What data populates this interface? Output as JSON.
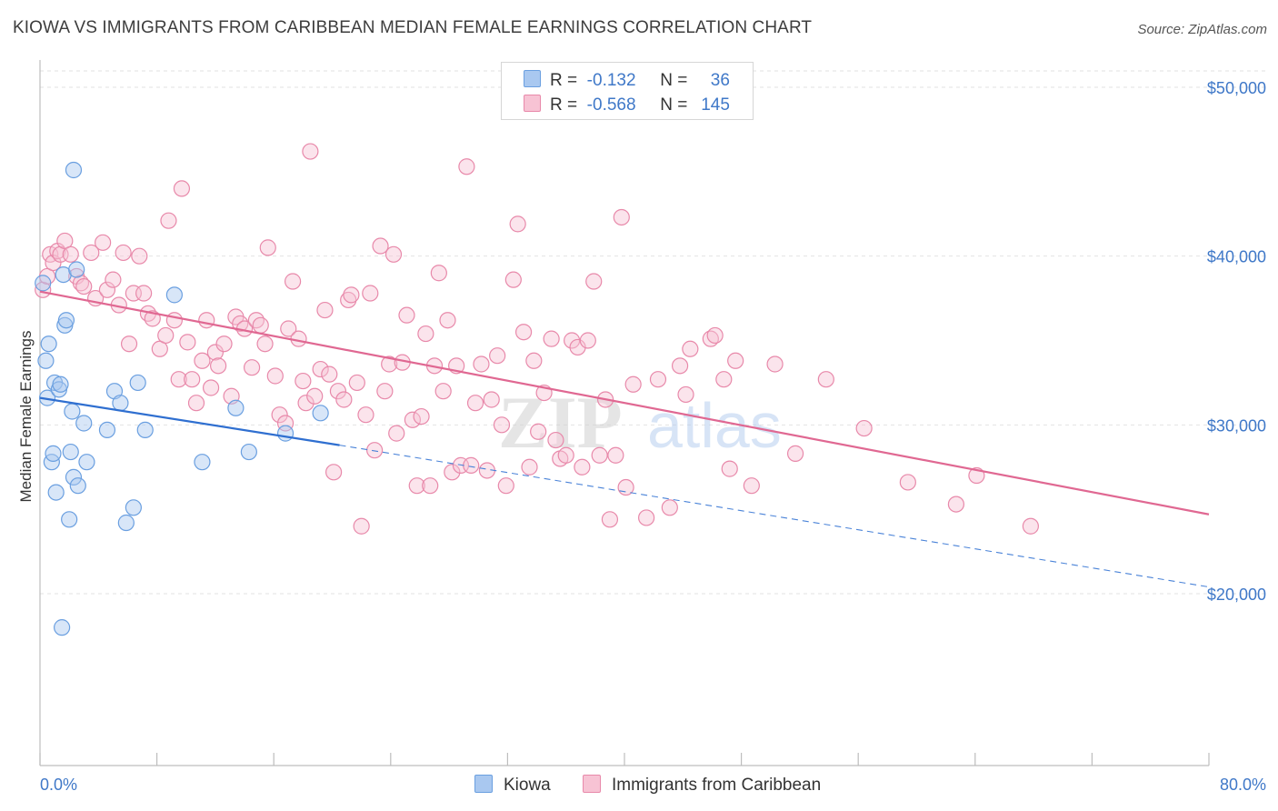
{
  "title": "KIOWA VS IMMIGRANTS FROM CARIBBEAN MEDIAN FEMALE EARNINGS CORRELATION CHART",
  "source": "Source: ZipAtlas.com",
  "watermark": {
    "zip": "ZIP",
    "atlas": "atlas"
  },
  "legend": {
    "r_label": "R =",
    "n_label": "N =",
    "rows": [
      {
        "r": "-0.132",
        "n": "36",
        "color": "#a9c8f0",
        "border": "#6a9fe0"
      },
      {
        "r": "-0.568",
        "n": "145",
        "color": "#f7c3d4",
        "border": "#e889aa"
      }
    ]
  },
  "bottom_legend": [
    "Kiowa",
    "Immigrants from Caribbean"
  ],
  "chart_data": {
    "type": "scatter",
    "title": "KIOWA VS IMMIGRANTS FROM CARIBBEAN MEDIAN FEMALE EARNINGS CORRELATION CHART",
    "xlabel": "",
    "ylabel": "Median Female Earnings",
    "x_unit": "%",
    "xlim": [
      0,
      80
    ],
    "ylim": [
      10000,
      52000
    ],
    "x_tick_labels": [
      "0.0%",
      "80.0%"
    ],
    "y_ticks": [
      20000,
      30000,
      40000,
      50000
    ],
    "y_tick_labels": [
      "$20,000",
      "$30,000",
      "$40,000",
      "$50,000"
    ],
    "grid": true,
    "legend_position": "top-center",
    "series": [
      {
        "name": "Kiowa",
        "color": "#6a9fe0",
        "fill": "#a9c8f0",
        "r": -0.132,
        "n": 36,
        "trend": {
          "x0": 0,
          "y0": 31600,
          "x1": 20.5,
          "y1": 28800,
          "dashed_to_x": 80,
          "dashed_to_y": 20400
        },
        "points": [
          [
            0.2,
            38400
          ],
          [
            0.4,
            33800
          ],
          [
            0.5,
            31600
          ],
          [
            0.6,
            34800
          ],
          [
            0.8,
            27800
          ],
          [
            0.9,
            28300
          ],
          [
            1.0,
            32500
          ],
          [
            1.1,
            26000
          ],
          [
            1.3,
            32100
          ],
          [
            1.4,
            32400
          ],
          [
            1.5,
            18000
          ],
          [
            1.6,
            38900
          ],
          [
            1.7,
            35900
          ],
          [
            1.8,
            36200
          ],
          [
            2.0,
            24400
          ],
          [
            2.1,
            28400
          ],
          [
            2.2,
            30800
          ],
          [
            2.3,
            26900
          ],
          [
            2.3,
            45100
          ],
          [
            2.5,
            39200
          ],
          [
            2.6,
            26400
          ],
          [
            3.0,
            30100
          ],
          [
            3.2,
            27800
          ],
          [
            4.6,
            29700
          ],
          [
            5.1,
            32000
          ],
          [
            5.5,
            31300
          ],
          [
            5.9,
            24200
          ],
          [
            6.4,
            25100
          ],
          [
            6.7,
            32500
          ],
          [
            7.2,
            29700
          ],
          [
            9.2,
            37700
          ],
          [
            11.1,
            27800
          ],
          [
            13.4,
            31000
          ],
          [
            14.3,
            28400
          ],
          [
            16.8,
            29500
          ],
          [
            19.2,
            30700
          ]
        ]
      },
      {
        "name": "Immigrants from Caribbean",
        "color": "#e889aa",
        "fill": "#f7c3d4",
        "r": -0.568,
        "n": 145,
        "trend": {
          "x0": 0,
          "y0": 37900,
          "x1": 80,
          "y1": 24700
        },
        "points": [
          [
            0.2,
            38000
          ],
          [
            0.5,
            38800
          ],
          [
            0.7,
            40100
          ],
          [
            0.9,
            39600
          ],
          [
            1.2,
            40300
          ],
          [
            1.4,
            40100
          ],
          [
            1.7,
            40900
          ],
          [
            2.1,
            40100
          ],
          [
            2.5,
            38800
          ],
          [
            2.8,
            38400
          ],
          [
            3.0,
            38200
          ],
          [
            3.5,
            40200
          ],
          [
            3.8,
            37500
          ],
          [
            4.3,
            40800
          ],
          [
            4.6,
            38000
          ],
          [
            5.0,
            38600
          ],
          [
            5.4,
            37100
          ],
          [
            5.7,
            40200
          ],
          [
            6.1,
            34800
          ],
          [
            6.4,
            37800
          ],
          [
            6.8,
            40000
          ],
          [
            7.1,
            37800
          ],
          [
            7.4,
            36600
          ],
          [
            7.7,
            36300
          ],
          [
            8.2,
            34500
          ],
          [
            8.6,
            35300
          ],
          [
            8.8,
            42100
          ],
          [
            9.2,
            36200
          ],
          [
            9.5,
            32700
          ],
          [
            9.7,
            44000
          ],
          [
            10.1,
            34900
          ],
          [
            10.4,
            32700
          ],
          [
            10.7,
            31300
          ],
          [
            11.1,
            33800
          ],
          [
            11.4,
            36200
          ],
          [
            11.7,
            32200
          ],
          [
            12.0,
            34300
          ],
          [
            12.2,
            33500
          ],
          [
            12.6,
            34800
          ],
          [
            13.1,
            31700
          ],
          [
            13.4,
            36400
          ],
          [
            13.7,
            36000
          ],
          [
            14.0,
            35700
          ],
          [
            14.5,
            33400
          ],
          [
            14.8,
            36200
          ],
          [
            15.1,
            35900
          ],
          [
            15.4,
            34800
          ],
          [
            15.6,
            40500
          ],
          [
            16.1,
            32900
          ],
          [
            16.4,
            30600
          ],
          [
            16.8,
            30100
          ],
          [
            17.0,
            35700
          ],
          [
            17.3,
            38500
          ],
          [
            17.7,
            35100
          ],
          [
            18.0,
            32600
          ],
          [
            18.2,
            31300
          ],
          [
            18.5,
            46200
          ],
          [
            18.8,
            31700
          ],
          [
            19.2,
            33300
          ],
          [
            19.5,
            36800
          ],
          [
            19.8,
            33000
          ],
          [
            20.1,
            27200
          ],
          [
            20.4,
            32000
          ],
          [
            20.8,
            31500
          ],
          [
            21.1,
            37400
          ],
          [
            21.3,
            37700
          ],
          [
            21.7,
            32500
          ],
          [
            22.0,
            24000
          ],
          [
            22.3,
            30600
          ],
          [
            22.6,
            37800
          ],
          [
            22.9,
            28500
          ],
          [
            23.3,
            40600
          ],
          [
            23.6,
            32000
          ],
          [
            23.9,
            33600
          ],
          [
            24.2,
            40100
          ],
          [
            24.4,
            29500
          ],
          [
            24.8,
            33700
          ],
          [
            25.1,
            36500
          ],
          [
            25.5,
            30300
          ],
          [
            25.8,
            26400
          ],
          [
            26.1,
            30500
          ],
          [
            26.4,
            35400
          ],
          [
            26.7,
            26400
          ],
          [
            27.0,
            33500
          ],
          [
            27.3,
            39000
          ],
          [
            27.6,
            32000
          ],
          [
            27.9,
            36200
          ],
          [
            28.2,
            27200
          ],
          [
            28.5,
            33500
          ],
          [
            28.8,
            27600
          ],
          [
            29.2,
            45300
          ],
          [
            29.5,
            27600
          ],
          [
            29.8,
            31300
          ],
          [
            30.2,
            33600
          ],
          [
            30.6,
            27300
          ],
          [
            30.9,
            31500
          ],
          [
            31.3,
            34100
          ],
          [
            31.6,
            30000
          ],
          [
            31.9,
            26400
          ],
          [
            32.4,
            38600
          ],
          [
            32.7,
            41900
          ],
          [
            33.1,
            35500
          ],
          [
            33.5,
            27500
          ],
          [
            33.8,
            33800
          ],
          [
            34.1,
            29600
          ],
          [
            34.5,
            31900
          ],
          [
            35.0,
            35100
          ],
          [
            35.3,
            29100
          ],
          [
            35.6,
            28000
          ],
          [
            36.0,
            28200
          ],
          [
            36.4,
            35000
          ],
          [
            36.8,
            34600
          ],
          [
            37.1,
            27500
          ],
          [
            37.5,
            35000
          ],
          [
            37.9,
            38500
          ],
          [
            38.3,
            28200
          ],
          [
            38.7,
            31500
          ],
          [
            39.0,
            24400
          ],
          [
            39.4,
            28200
          ],
          [
            39.8,
            42300
          ],
          [
            40.1,
            26300
          ],
          [
            40.6,
            32400
          ],
          [
            41.5,
            24500
          ],
          [
            42.3,
            32700
          ],
          [
            43.1,
            25100
          ],
          [
            43.8,
            33500
          ],
          [
            44.2,
            31800
          ],
          [
            44.5,
            34500
          ],
          [
            45.9,
            35100
          ],
          [
            46.2,
            35300
          ],
          [
            46.8,
            32700
          ],
          [
            47.2,
            27400
          ],
          [
            47.6,
            33800
          ],
          [
            48.7,
            26400
          ],
          [
            50.3,
            33600
          ],
          [
            51.7,
            28300
          ],
          [
            53.8,
            32700
          ],
          [
            56.4,
            29800
          ],
          [
            59.4,
            26600
          ],
          [
            62.7,
            25300
          ],
          [
            64.1,
            27000
          ],
          [
            67.8,
            24000
          ]
        ]
      }
    ]
  }
}
